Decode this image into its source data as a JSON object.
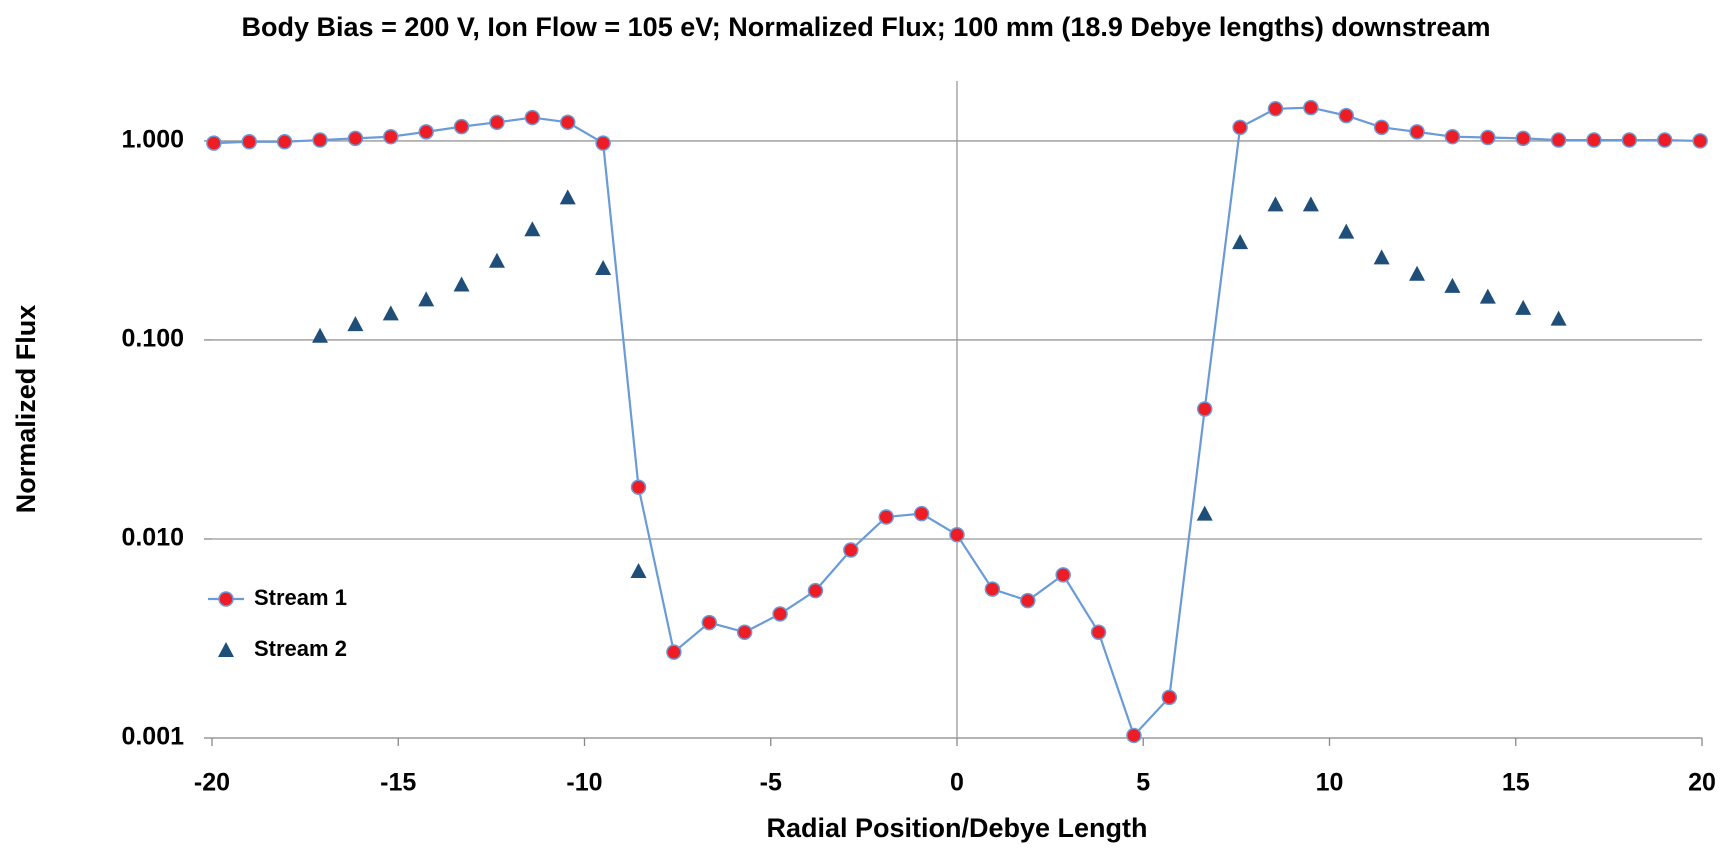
{
  "chart_data": {
    "type": "line",
    "title": "Body Bias = 200 V, Ion Flow = 105 eV; Normalized Flux; 100 mm (18.9 Debye lengths) downstream",
    "x_label": "Radial Position/Debye Length",
    "y_label": "Normalized Flux",
    "yscale": "log",
    "grid": true,
    "legend": "left",
    "xlim": [
      -20,
      20
    ],
    "xticks": [
      -20,
      -15,
      -10,
      -5,
      0,
      5,
      10,
      15,
      20
    ],
    "ylim": [
      0.001,
      2
    ],
    "yticks": [
      {
        "value": 0.001,
        "label": "0.001"
      },
      {
        "value": 0.01,
        "label": "0.010"
      },
      {
        "value": 0.1,
        "label": "0.100"
      },
      {
        "value": 1,
        "label": "1.000"
      }
    ],
    "series": [
      {
        "name": "Stream 1",
        "color": "#ee1c25",
        "line_color": "#6a9bd8",
        "marker": "circle",
        "line": true,
        "x": [
          -19.95,
          -19,
          -18.05,
          -17.1,
          -16.15,
          -15.2,
          -14.25,
          -13.3,
          -12.35,
          -11.4,
          -10.45,
          -9.5,
          -8.55,
          -7.6,
          -6.65,
          -5.7,
          -4.75,
          -3.8,
          -2.85,
          -1.9,
          -0.95,
          0,
          0.95,
          1.9,
          2.85,
          3.8,
          4.75,
          5.7,
          6.65,
          7.6,
          8.55,
          9.5,
          10.45,
          11.4,
          12.35,
          13.3,
          14.25,
          15.2,
          16.15,
          17.1,
          18.05,
          19,
          19.95
        ],
        "values": [
          0.975,
          0.99,
          0.99,
          1.01,
          1.03,
          1.05,
          1.11,
          1.18,
          1.24,
          1.31,
          1.24,
          0.975,
          0.0182,
          0.0027,
          0.0038,
          0.0034,
          0.0042,
          0.0055,
          0.0088,
          0.0129,
          0.0134,
          0.0105,
          0.0056,
          0.0049,
          0.0066,
          0.0034,
          0.00103,
          0.0016,
          0.045,
          1.17,
          1.45,
          1.47,
          1.34,
          1.17,
          1.11,
          1.05,
          1.04,
          1.03,
          1.01,
          1.01,
          1.01,
          1.01,
          1.0
        ]
      },
      {
        "name": "Stream 2",
        "color": "#1f4e79",
        "marker": "triangle",
        "line": false,
        "x": [
          -17.1,
          -16.15,
          -15.2,
          -14.25,
          -13.3,
          -12.35,
          -11.4,
          -10.45,
          -9.5,
          -8.55,
          6.65,
          7.6,
          8.55,
          9.5,
          10.45,
          11.4,
          12.35,
          13.3,
          14.25,
          15.2,
          16.15
        ],
        "values": [
          0.105,
          0.12,
          0.136,
          0.16,
          0.19,
          0.25,
          0.36,
          0.52,
          0.23,
          0.0069,
          0.0134,
          0.31,
          0.48,
          0.48,
          0.35,
          0.26,
          0.215,
          0.187,
          0.165,
          0.145,
          0.128
        ]
      }
    ]
  }
}
